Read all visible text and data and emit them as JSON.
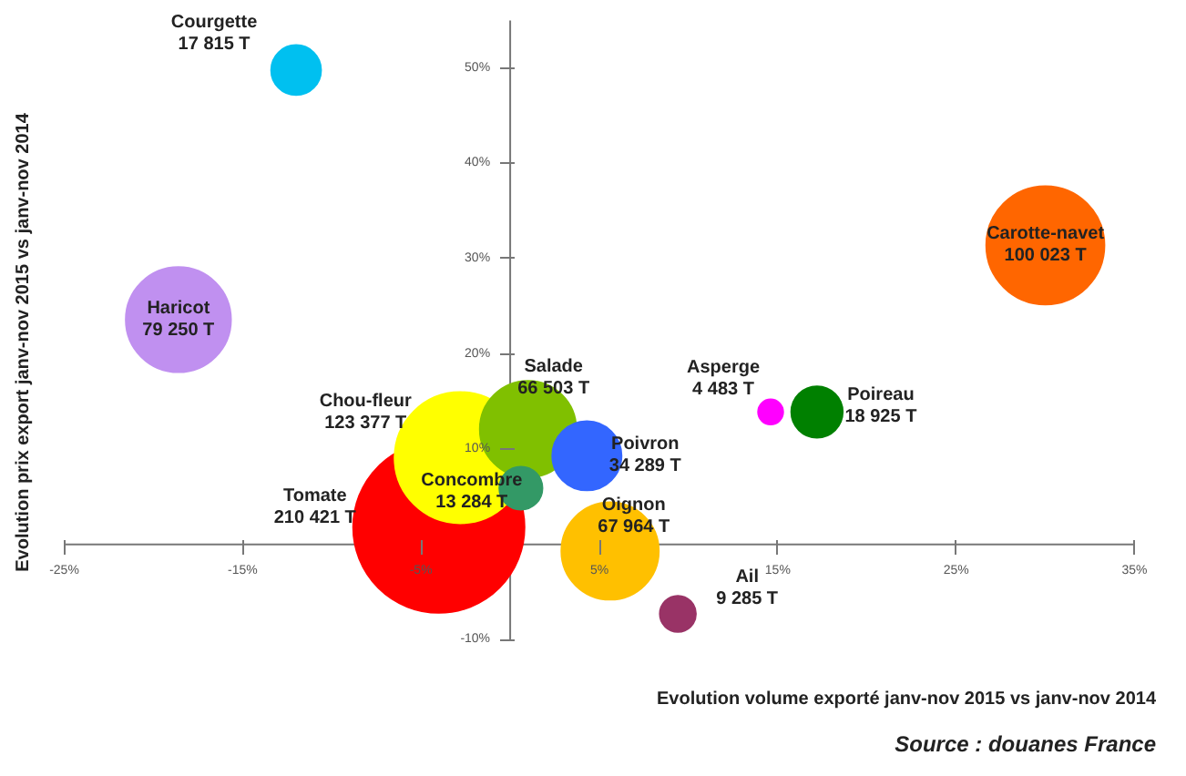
{
  "chart_data": {
    "type": "bubble",
    "xlabel": "Evolution volume exporté janv-nov 2015 vs janv-nov 2014",
    "ylabel": "Evolution prix export janv-nov 2015 vs janv-nov 2014",
    "series": [
      {
        "name": "Tomate",
        "x": [
          -4.0
        ],
        "values": [
          1.8
        ],
        "sizes": [
          210421
        ],
        "value_labels": [
          "210 421 T"
        ],
        "color": "#ff0000"
      },
      {
        "name": "Chou-fleur",
        "x": [
          -2.8
        ],
        "values": [
          9.1
        ],
        "sizes": [
          123377
        ],
        "value_labels": [
          "123 377 T"
        ],
        "color": "#ffff00"
      },
      {
        "name": "Salade",
        "x": [
          1.0
        ],
        "values": [
          12.1
        ],
        "sizes": [
          66503
        ],
        "value_labels": [
          "66 503 T"
        ],
        "color": "#80c000"
      },
      {
        "name": "Poivron",
        "x": [
          4.3
        ],
        "values": [
          9.3
        ],
        "sizes": [
          34289
        ],
        "value_labels": [
          "34 289 T"
        ],
        "color": "#3366ff"
      },
      {
        "name": "Concombre",
        "x": [
          0.6
        ],
        "values": [
          5.9
        ],
        "sizes": [
          13284
        ],
        "value_labels": [
          "13 284 T"
        ],
        "color": "#339966"
      },
      {
        "name": "Oignon",
        "x": [
          5.6
        ],
        "values": [
          -0.7
        ],
        "sizes": [
          67964
        ],
        "value_labels": [
          "67 964 T"
        ],
        "color": "#ffc000"
      },
      {
        "name": "Ail",
        "x": [
          9.4
        ],
        "values": [
          -7.3
        ],
        "sizes": [
          9285
        ],
        "value_labels": [
          "9 285 T"
        ],
        "color": "#993366"
      },
      {
        "name": "Courgette",
        "x": [
          -12.0
        ],
        "values": [
          49.8
        ],
        "sizes": [
          17815
        ],
        "value_labels": [
          "17 815 T"
        ],
        "color": "#00c0f0"
      },
      {
        "name": "Haricot",
        "x": [
          -18.6
        ],
        "values": [
          23.6
        ],
        "sizes": [
          79250
        ],
        "value_labels": [
          "79 250 T"
        ],
        "color": "#c090f0"
      },
      {
        "name": "Carotte-navet",
        "x": [
          30.0
        ],
        "values": [
          31.4
        ],
        "sizes": [
          100023
        ],
        "value_labels": [
          "100 023 T"
        ],
        "color": "#ff6600"
      },
      {
        "name": "Asperge",
        "x": [
          14.6
        ],
        "values": [
          13.9
        ],
        "sizes": [
          4483
        ],
        "value_labels": [
          "4 483 T"
        ],
        "color": "#ff00ff"
      },
      {
        "name": "Poireau",
        "x": [
          17.2
        ],
        "values": [
          13.9
        ],
        "sizes": [
          18925
        ],
        "value_labels": [
          "18 925 T"
        ],
        "color": "#008000"
      }
    ],
    "annotations": [
      "Source : douanes France"
    ],
    "xlim": [
      -25,
      35
    ],
    "xticks": [
      {
        "value": -25,
        "label": "-25%"
      },
      {
        "value": -15,
        "label": "-15%"
      },
      {
        "value": -5,
        "label": "-5%"
      },
      {
        "value": 5,
        "label": "5%"
      },
      {
        "value": 15,
        "label": "15%"
      },
      {
        "value": 25,
        "label": "25%"
      },
      {
        "value": 35,
        "label": "35%"
      }
    ],
    "ylim": [
      -10,
      55
    ],
    "yticks": [
      {
        "value": -10,
        "label": "-10%"
      },
      {
        "value": 10,
        "label": "10%"
      },
      {
        "value": 20,
        "label": "20%"
      },
      {
        "value": 30,
        "label": "30%"
      },
      {
        "value": 40,
        "label": "40%"
      },
      {
        "value": 50,
        "label": "50%"
      }
    ],
    "grid": false
  }
}
